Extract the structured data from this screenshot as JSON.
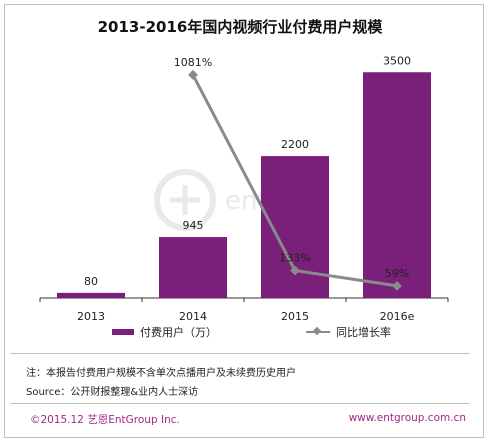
{
  "chart_data": {
    "type": "bar",
    "title": "2013-2016年国内视频行业付费用户规模",
    "categories": [
      "2013",
      "2014",
      "2015",
      "2016e"
    ],
    "series": [
      {
        "name": "付费用户（万）",
        "type": "bar",
        "values": [
          80,
          945,
          2200,
          3500
        ],
        "labels": [
          "80",
          "945",
          "2200",
          "3500"
        ],
        "color": "#7a1f7a"
      },
      {
        "name": "同比增长率",
        "type": "line",
        "values": [
          null,
          1081,
          133,
          59
        ],
        "labels": [
          "",
          "1081%",
          "133%",
          "59%"
        ],
        "color": "#8a8a8a"
      }
    ],
    "ylim_bar": [
      0,
      4000
    ],
    "ylim_line": [
      0,
      1250
    ],
    "legend_position": "bottom"
  },
  "notes": {
    "note": "注：本报告付费用户规模不含单次点播用户及未续费历史用户",
    "source": "Source：公开财报整理&业内人士深访"
  },
  "footer": {
    "copyright": "©2015.12  艺恩EntGroup Inc.",
    "url": "www.entgroup.com.cn"
  },
  "watermark": {
    "icon": "entgroup-logo-icon",
    "text": "entgroup"
  }
}
